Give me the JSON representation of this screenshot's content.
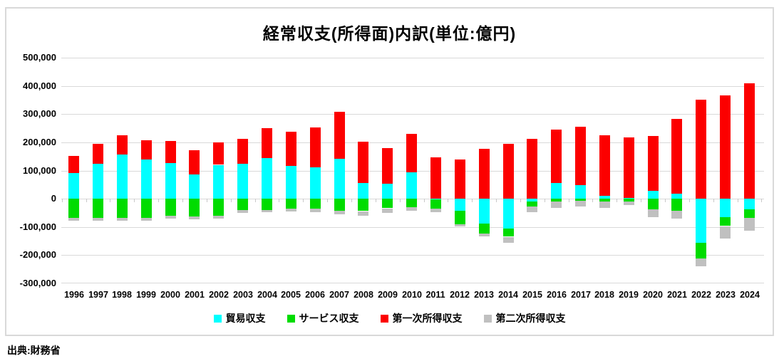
{
  "chart": {
    "title": "経常収支(所得面)内訳(単位:億円)",
    "source": "出典:財務省"
  },
  "chart_data": {
    "type": "bar",
    "stacked": true,
    "title": "経常収支(所得面)内訳(単位:億円)",
    "xlabel": "",
    "ylabel": "",
    "unit": "億円",
    "ylim": [
      -300000,
      500000
    ],
    "ytick_interval": 100000,
    "yticks": [
      500000,
      400000,
      300000,
      200000,
      100000,
      0,
      -100000,
      -200000,
      -300000
    ],
    "grid": true,
    "legend_position": "bottom",
    "categories": [
      "1996",
      "1997",
      "1998",
      "1999",
      "2000",
      "2001",
      "2002",
      "2003",
      "2004",
      "2005",
      "2006",
      "2007",
      "2008",
      "2009",
      "2010",
      "2011",
      "2012",
      "2013",
      "2014",
      "2015",
      "2016",
      "2017",
      "2018",
      "2019",
      "2020",
      "2021",
      "2022",
      "2023",
      "2024"
    ],
    "series": [
      {
        "name": "貿易収支",
        "color": "#00ffff",
        "values": [
          90000,
          123000,
          160000,
          139000,
          127000,
          85000,
          120000,
          124000,
          145000,
          116000,
          111000,
          142000,
          55000,
          54000,
          95000,
          -3000,
          -43000,
          -88000,
          -105000,
          -9000,
          55000,
          49000,
          11000,
          2000,
          28000,
          18000,
          -157000,
          -65000,
          -38000
        ]
      },
      {
        "name": "サービス収支",
        "color": "#00dc00",
        "values": [
          -67000,
          -67000,
          -67000,
          -68000,
          -61000,
          -63000,
          -61000,
          -40000,
          -40000,
          -36000,
          -35000,
          -42000,
          -44000,
          -34000,
          -30000,
          -32000,
          -47000,
          -35000,
          -30000,
          -19000,
          -11000,
          -7000,
          -11000,
          -9000,
          -38000,
          -43000,
          -55000,
          -32000,
          -31000
        ]
      },
      {
        "name": "第一次所得収支",
        "color": "#fc0000",
        "values": [
          62000,
          72000,
          66000,
          67000,
          77000,
          86000,
          80000,
          88000,
          105000,
          121000,
          142000,
          165000,
          146000,
          125000,
          136000,
          146000,
          140000,
          177000,
          194000,
          213000,
          191000,
          207000,
          214000,
          216000,
          194000,
          264000,
          350000,
          366000,
          408000
        ]
      },
      {
        "name": "第二次所得収支",
        "color": "#c0c0c0",
        "values": [
          -10000,
          -10000,
          -11000,
          -11000,
          -10000,
          -11000,
          -10000,
          -10000,
          -9000,
          -10000,
          -12000,
          -14000,
          -14000,
          -13000,
          -13000,
          -14000,
          -8000,
          -10000,
          -20000,
          -20000,
          -21000,
          -21000,
          -22000,
          -14000,
          -28000,
          -27000,
          -27000,
          -43000,
          -45000
        ]
      }
    ]
  }
}
